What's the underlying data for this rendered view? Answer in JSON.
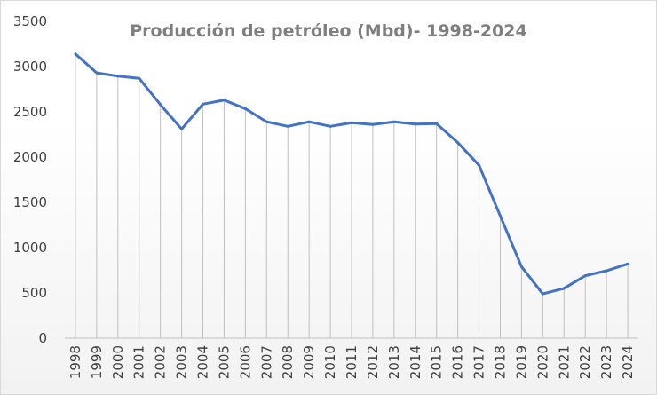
{
  "chart_data": {
    "type": "line",
    "title": "Producción  de petróleo (Mbd)- 1998-2024",
    "xlabel": "",
    "ylabel": "",
    "ylim": [
      0,
      3500
    ],
    "yticks": [
      0,
      500,
      1000,
      1500,
      2000,
      2500,
      3000,
      3500
    ],
    "grid": false,
    "drop_lines": true,
    "legend": "none",
    "line_color": "#4472c4",
    "categories": [
      "1998",
      "1999",
      "2000",
      "2001",
      "2002",
      "2003",
      "2004",
      "2005",
      "2006",
      "2007",
      "2008",
      "2009",
      "2010",
      "2011",
      "2012",
      "2013",
      "2014",
      "2015",
      "2016",
      "2017",
      "2018",
      "2019",
      "2020",
      "2021",
      "2022",
      "2023",
      "2024"
    ],
    "series": [
      {
        "values": [
          3140,
          2930,
          2895,
          2870,
          2580,
          2310,
          2585,
          2630,
          2535,
          2390,
          2340,
          2390,
          2340,
          2380,
          2360,
          2390,
          2365,
          2370,
          2160,
          1910,
          1350,
          790,
          490,
          550,
          690,
          745,
          820
        ]
      }
    ]
  }
}
